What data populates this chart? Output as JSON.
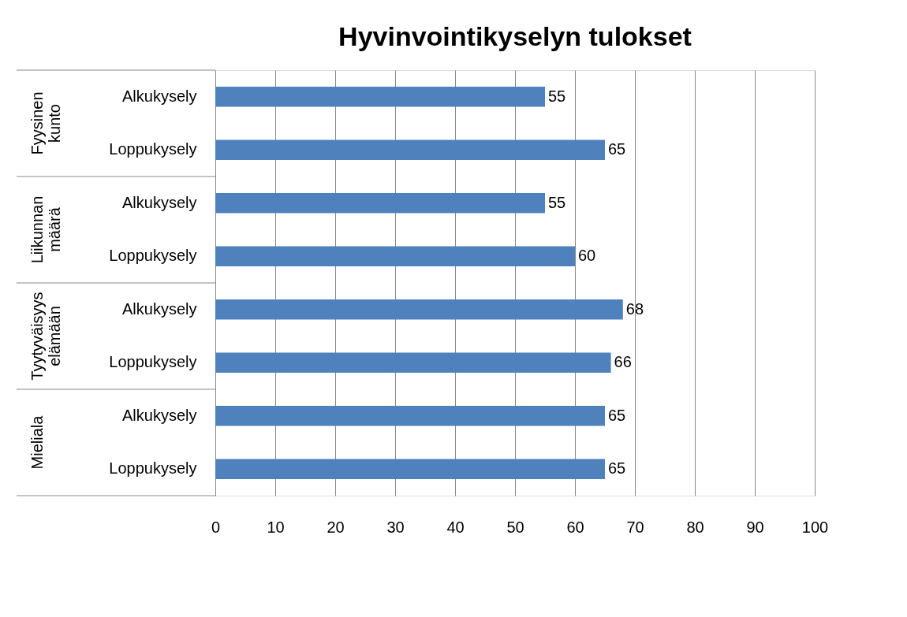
{
  "chart_data": {
    "type": "bar",
    "orientation": "horizontal",
    "title": "Hyvinvointikyselyn tulokset",
    "categories": [
      "Alkukysely",
      "Loppukysely",
      "Alkukysely",
      "Loppukysely",
      "Alkukysely",
      "Loppukysely",
      "Alkukysely",
      "Loppukysely"
    ],
    "values": [
      55,
      65,
      55,
      60,
      68,
      66,
      65,
      65
    ],
    "color": "#4f81bd",
    "annotations": [
      "Fyysinen kunto",
      "Liikunnan määrä",
      "Tyytyväisyys elämään",
      "Mieliala"
    ],
    "xlim": [
      0,
      100
    ],
    "xticks": [
      0,
      10,
      20,
      30,
      40,
      50,
      60,
      70,
      80,
      90,
      100
    ],
    "grid": "x",
    "data_labels": true
  }
}
